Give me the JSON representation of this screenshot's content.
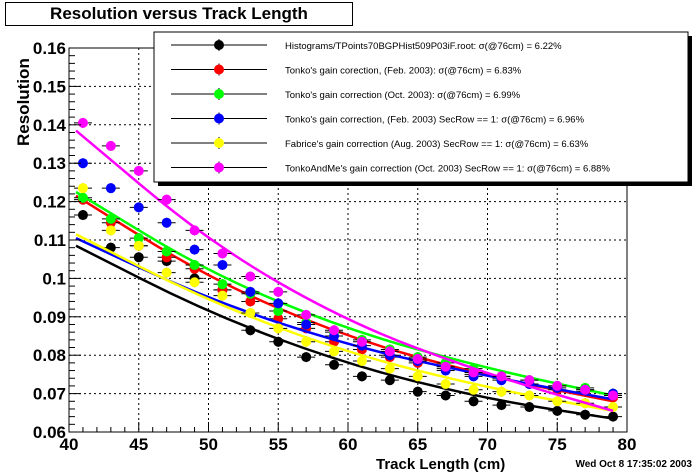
{
  "title": "Resolution versus Track Length",
  "timestamp": "Wed Oct  8 17:35:02 2003",
  "chart_data": {
    "type": "scatter",
    "title": "Resolution versus Track Length",
    "xlabel": "Track Length (cm)",
    "ylabel": "Resolution",
    "xlim": [
      40,
      80
    ],
    "ylim": [
      0.06,
      0.16
    ],
    "x_ticks": [
      40,
      45,
      50,
      55,
      60,
      65,
      70,
      75,
      80
    ],
    "y_ticks": [
      0.06,
      0.07,
      0.08,
      0.09,
      0.1,
      0.11,
      0.12,
      0.13,
      0.14,
      0.15,
      0.16
    ],
    "grid": true,
    "legend_position": "top-right",
    "series": [
      {
        "name": "Histograms/TPoints70BGPHist509P03iF.root:  σ(@76cm) =  6.22%",
        "color": "#000000",
        "x": [
          41,
          43,
          45,
          47,
          49,
          51,
          53,
          55,
          57,
          59,
          61,
          63,
          65,
          67,
          69,
          71,
          73,
          75,
          77,
          79
        ],
        "y": [
          0.1165,
          0.108,
          0.1055,
          0.1045,
          0.1,
          0.097,
          0.0865,
          0.0835,
          0.0795,
          0.0775,
          0.0745,
          0.0735,
          0.0705,
          0.0695,
          0.068,
          0.067,
          0.0665,
          0.0655,
          0.0645,
          0.064
        ],
        "fit": [
          [
            40.5,
            0.1085
          ],
          [
            50,
            0.091
          ],
          [
            60,
            0.0775
          ],
          [
            70,
            0.0685
          ],
          [
            79,
            0.0635
          ]
        ]
      },
      {
        "name": "Tonko's gain corection, (Feb. 2003):  σ(@76cm) =  6.83%",
        "color": "#ff0000",
        "x": [
          41,
          43,
          45,
          47,
          49,
          51,
          53,
          55,
          57,
          59,
          61,
          63,
          65,
          67,
          69,
          71,
          73,
          75,
          77,
          79
        ],
        "y": [
          0.1205,
          0.1145,
          0.1085,
          0.1055,
          0.1025,
          0.097,
          0.094,
          0.0895,
          0.087,
          0.0835,
          0.0815,
          0.0795,
          0.078,
          0.0765,
          0.075,
          0.074,
          0.0725,
          0.071,
          0.0705,
          0.069
        ],
        "fit": [
          [
            40.5,
            0.1215
          ],
          [
            50,
            0.1
          ],
          [
            60,
            0.0845
          ],
          [
            70,
            0.0745
          ],
          [
            79,
            0.068
          ]
        ]
      },
      {
        "name": "Tonko's gain correction (Oct. 2003):  σ(@76cm) =  6.99%",
        "color": "#00ff00",
        "x": [
          41,
          43,
          45,
          47,
          49,
          51,
          53,
          55,
          57,
          59,
          61,
          63,
          65,
          67,
          69,
          71,
          73,
          75,
          77,
          79
        ],
        "y": [
          0.121,
          0.1155,
          0.1105,
          0.107,
          0.1035,
          0.0985,
          0.096,
          0.0915,
          0.0885,
          0.086,
          0.084,
          0.0815,
          0.0795,
          0.078,
          0.0765,
          0.0745,
          0.0735,
          0.072,
          0.0715,
          0.07
        ],
        "fit": [
          [
            40.5,
            0.1225
          ],
          [
            50,
            0.1015
          ],
          [
            60,
            0.0865
          ],
          [
            70,
            0.0765
          ],
          [
            79,
            0.0695
          ]
        ]
      },
      {
        "name": "Tonko's gain correction, (Feb. 2003) SecRow == 1:  σ(@76cm) =  6.96%",
        "color": "#0000ff",
        "x": [
          41,
          43,
          45,
          47,
          49,
          51,
          53,
          55,
          57,
          59,
          61,
          63,
          65,
          67,
          69,
          71,
          73,
          75,
          77,
          79
        ],
        "y": [
          0.13,
          0.1235,
          0.1185,
          0.1145,
          0.1075,
          0.1035,
          0.0965,
          0.0935,
          0.088,
          0.085,
          0.0825,
          0.08,
          0.0785,
          0.076,
          0.0745,
          0.0735,
          0.0725,
          0.0715,
          0.071,
          0.07
        ],
        "fit": [
          [
            40.5,
            0.1105
          ],
          [
            50,
            0.0945
          ],
          [
            60,
            0.0825
          ],
          [
            70,
            0.0745
          ],
          [
            79,
            0.0685
          ]
        ]
      },
      {
        "name": "Fabrice's gain correction (Aug. 2003) SecRow == 1:  σ(@76cm) =  6.63%",
        "color": "#ffff00",
        "x": [
          41,
          43,
          45,
          47,
          49,
          51,
          53,
          55,
          57,
          59,
          61,
          63,
          65,
          67,
          69,
          71,
          73,
          75,
          77,
          79
        ],
        "y": [
          0.1235,
          0.1125,
          0.1085,
          0.1015,
          0.099,
          0.0955,
          0.091,
          0.087,
          0.0835,
          0.081,
          0.0785,
          0.0765,
          0.0745,
          0.0725,
          0.071,
          0.0705,
          0.0695,
          0.068,
          0.0675,
          0.0665
        ],
        "fit": [
          [
            40.5,
            0.1115
          ],
          [
            50,
            0.094
          ],
          [
            60,
            0.0805
          ],
          [
            70,
            0.0715
          ],
          [
            79,
            0.0655
          ]
        ]
      },
      {
        "name": "TonkoAndMe's gain correction (Oct. 2003) SecRow == 1:  σ(@76cm) =  6.88%",
        "color": "#ff00ff",
        "x": [
          41,
          43,
          45,
          47,
          49,
          51,
          53,
          55,
          57,
          59,
          61,
          63,
          65,
          67,
          69,
          71,
          73,
          75,
          77,
          79
        ],
        "y": [
          0.1405,
          0.1345,
          0.128,
          0.1205,
          0.1125,
          0.1065,
          0.1005,
          0.0965,
          0.0905,
          0.0865,
          0.0835,
          0.081,
          0.079,
          0.077,
          0.0755,
          0.0745,
          0.0735,
          0.072,
          0.071,
          0.0695
        ],
        "fit": [
          [
            40.5,
            0.1385
          ],
          [
            50,
            0.1095
          ],
          [
            60,
            0.0885
          ],
          [
            70,
            0.075
          ],
          [
            79,
            0.0655
          ]
        ]
      }
    ]
  }
}
